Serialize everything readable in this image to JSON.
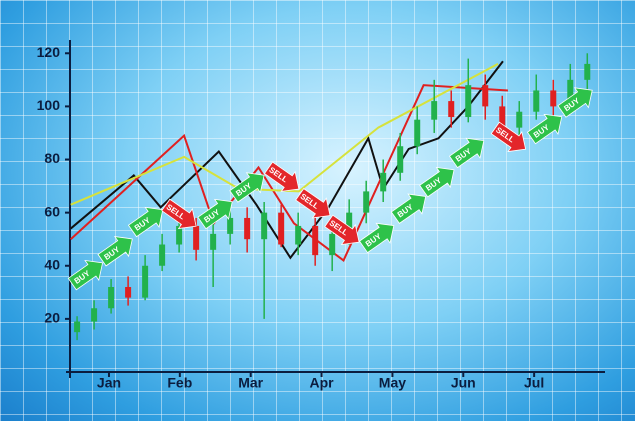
{
  "chart_data": {
    "type": "candlestick",
    "xlim": [
      0.45,
      8
    ],
    "ylim": [
      0,
      125
    ],
    "xticks": [
      {
        "value": 1,
        "label": "Jan"
      },
      {
        "value": 2,
        "label": "Feb"
      },
      {
        "value": 3,
        "label": "Mar"
      },
      {
        "value": 4,
        "label": "Apr"
      },
      {
        "value": 5,
        "label": "May"
      },
      {
        "value": 6,
        "label": "Jun"
      },
      {
        "value": 7,
        "label": "Jul"
      }
    ],
    "yticks": [
      20,
      40,
      60,
      80,
      100,
      120
    ],
    "series": [
      {
        "color": "#111111",
        "x": [
          0.46,
          1.35,
          1.73,
          2.55,
          3.08,
          3.56,
          4.1,
          4.66,
          4.87,
          5.23,
          5.65,
          6.07,
          6.56
        ],
        "values": [
          54,
          74,
          62,
          83,
          63,
          43,
          62,
          88,
          69,
          84,
          88,
          100,
          117
        ]
      },
      {
        "color": "#e02020",
        "x": [
          0.46,
          2.06,
          2.48,
          3.11,
          3.61,
          4.31,
          5.44,
          6.63
        ],
        "values": [
          50,
          89,
          56,
          77,
          56,
          42,
          108,
          106
        ]
      },
      {
        "color": "#d6e23c",
        "x": [
          0.46,
          2.06,
          2.83,
          3.68,
          4.8,
          6.49
        ],
        "values": [
          63,
          81,
          69,
          68,
          92,
          116
        ]
      }
    ],
    "candles": {
      "up_color": "#22b14c",
      "down_color": "#e02020",
      "x": [
        0.55,
        0.79,
        1.03,
        1.27,
        1.51,
        1.75,
        1.99,
        2.23,
        2.47,
        2.71,
        2.95,
        3.19,
        3.43,
        3.67,
        3.91,
        4.15,
        4.39,
        4.63,
        4.87,
        5.11,
        5.35,
        5.59,
        5.83,
        6.07,
        6.31,
        6.55,
        6.79,
        7.03,
        7.27,
        7.51,
        7.75
      ],
      "open": [
        15,
        19,
        24,
        32,
        28,
        40,
        48,
        55,
        46,
        52,
        58,
        50,
        60,
        48,
        55,
        44,
        52,
        60,
        68,
        75,
        85,
        95,
        102,
        96,
        108,
        100,
        92,
        98,
        106,
        100,
        110
      ],
      "close": [
        19,
        24,
        32,
        28,
        40,
        48,
        55,
        46,
        52,
        58,
        50,
        60,
        48,
        55,
        44,
        52,
        60,
        68,
        75,
        85,
        95,
        102,
        96,
        108,
        100,
        92,
        98,
        106,
        100,
        110,
        116
      ],
      "high": [
        21,
        27,
        35,
        36,
        44,
        52,
        60,
        58,
        56,
        63,
        62,
        64,
        63,
        60,
        58,
        56,
        65,
        72,
        80,
        90,
        100,
        110,
        106,
        118,
        112,
        104,
        102,
        112,
        110,
        116,
        120
      ],
      "low": [
        12,
        16,
        22,
        25,
        27,
        38,
        45,
        42,
        32,
        48,
        45,
        20,
        47,
        44,
        40,
        38,
        48,
        56,
        64,
        72,
        82,
        90,
        92,
        94,
        95,
        88,
        86,
        95,
        96,
        98,
        106
      ]
    },
    "signals": [
      {
        "label": "BUY",
        "x": 0.69,
        "y": 37
      },
      {
        "label": "BUY",
        "x": 1.11,
        "y": 46
      },
      {
        "label": "BUY",
        "x": 1.54,
        "y": 57
      },
      {
        "label": "SELL",
        "x": 2.01,
        "y": 59
      },
      {
        "label": "BUY",
        "x": 2.52,
        "y": 60
      },
      {
        "label": "BUY",
        "x": 2.97,
        "y": 70
      },
      {
        "label": "SELL",
        "x": 3.46,
        "y": 73
      },
      {
        "label": "SELL",
        "x": 3.9,
        "y": 63
      },
      {
        "label": "SELL",
        "x": 4.31,
        "y": 53
      },
      {
        "label": "BUY",
        "x": 4.8,
        "y": 51
      },
      {
        "label": "BUY",
        "x": 5.25,
        "y": 62
      },
      {
        "label": "BUY",
        "x": 5.65,
        "y": 72
      },
      {
        "label": "BUY",
        "x": 6.07,
        "y": 83
      },
      {
        "label": "SELL",
        "x": 6.66,
        "y": 88
      },
      {
        "label": "BUY",
        "x": 7.17,
        "y": 92
      },
      {
        "label": "BUY",
        "x": 7.6,
        "y": 102
      }
    ]
  }
}
